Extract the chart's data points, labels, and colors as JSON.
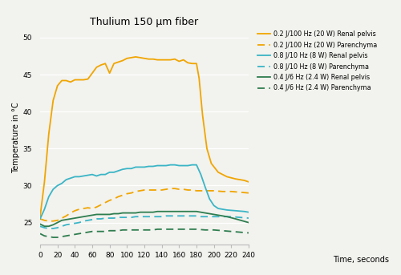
{
  "title": "Thulium 150 μm fiber",
  "ylabel": "Temperature in °C",
  "xlabel": "Time, seconds",
  "xlim": [
    0,
    240
  ],
  "ylim": [
    22,
    51
  ],
  "yticks": [
    25,
    30,
    35,
    40,
    45,
    50
  ],
  "xticks": [
    0,
    20,
    40,
    60,
    80,
    100,
    120,
    140,
    160,
    180,
    200,
    220,
    240
  ],
  "background_color": "#f2f2ee",
  "colors": {
    "orange": "#f0a500",
    "blue": "#3ab5c6",
    "green": "#2e7d4f"
  },
  "series": {
    "orange_solid": {
      "label": "0.2 J/100 Hz (20 W) Renal pelvis",
      "color": "#f0a500",
      "linestyle": "solid",
      "x": [
        0,
        5,
        10,
        15,
        20,
        25,
        30,
        35,
        40,
        45,
        50,
        55,
        60,
        65,
        70,
        75,
        80,
        85,
        90,
        95,
        100,
        105,
        110,
        115,
        120,
        125,
        130,
        135,
        140,
        145,
        150,
        155,
        160,
        165,
        170,
        175,
        180,
        183,
        187,
        192,
        197,
        205,
        215,
        225,
        235,
        240
      ],
      "y": [
        25.8,
        30.5,
        37.0,
        41.5,
        43.5,
        44.2,
        44.2,
        44.0,
        44.3,
        44.3,
        44.3,
        44.4,
        45.2,
        46.0,
        46.3,
        46.5,
        45.2,
        46.5,
        46.7,
        46.9,
        47.2,
        47.3,
        47.4,
        47.3,
        47.2,
        47.1,
        47.1,
        47.0,
        47.0,
        47.0,
        47.0,
        47.1,
        46.8,
        47.0,
        46.6,
        46.5,
        46.5,
        44.5,
        39.5,
        35.0,
        33.0,
        31.8,
        31.2,
        30.9,
        30.7,
        30.5
      ]
    },
    "orange_dashed": {
      "label": "0.2 J/100 Hz (20 W) Parenchyma",
      "color": "#f0a500",
      "linestyle": "dashed",
      "x": [
        0,
        5,
        10,
        15,
        20,
        25,
        30,
        35,
        40,
        45,
        50,
        55,
        60,
        65,
        70,
        75,
        80,
        85,
        90,
        95,
        100,
        105,
        110,
        115,
        120,
        125,
        130,
        135,
        140,
        145,
        150,
        155,
        160,
        165,
        170,
        175,
        180,
        185,
        190,
        200,
        210,
        220,
        230,
        240
      ],
      "y": [
        25.5,
        25.3,
        25.2,
        25.2,
        25.3,
        25.6,
        25.9,
        26.3,
        26.6,
        26.8,
        26.9,
        27.0,
        26.9,
        27.1,
        27.4,
        27.7,
        28.0,
        28.2,
        28.5,
        28.7,
        28.9,
        29.0,
        29.2,
        29.3,
        29.4,
        29.4,
        29.4,
        29.4,
        29.4,
        29.5,
        29.6,
        29.6,
        29.5,
        29.5,
        29.4,
        29.4,
        29.3,
        29.3,
        29.3,
        29.3,
        29.2,
        29.2,
        29.1,
        29.0
      ]
    },
    "blue_solid": {
      "label": "0.8 J/10 Hz (8 W) Renal pelvis",
      "color": "#3ab5c6",
      "linestyle": "solid",
      "x": [
        0,
        5,
        10,
        15,
        20,
        25,
        30,
        35,
        40,
        45,
        50,
        55,
        60,
        65,
        70,
        75,
        80,
        85,
        90,
        95,
        100,
        105,
        110,
        115,
        120,
        125,
        130,
        135,
        140,
        145,
        150,
        155,
        160,
        165,
        170,
        175,
        180,
        185,
        190,
        195,
        200,
        205,
        215,
        225,
        235,
        240
      ],
      "y": [
        25.5,
        26.8,
        28.5,
        29.5,
        30.0,
        30.3,
        30.8,
        31.0,
        31.2,
        31.2,
        31.3,
        31.4,
        31.5,
        31.3,
        31.5,
        31.5,
        31.8,
        31.8,
        32.0,
        32.2,
        32.3,
        32.3,
        32.5,
        32.5,
        32.5,
        32.6,
        32.6,
        32.7,
        32.7,
        32.7,
        32.8,
        32.8,
        32.7,
        32.7,
        32.7,
        32.8,
        32.8,
        31.5,
        29.8,
        28.2,
        27.3,
        26.9,
        26.7,
        26.6,
        26.5,
        26.4
      ]
    },
    "blue_dashed": {
      "label": "0.8 J/10 Hz (8 W) Parenchyma",
      "color": "#3ab5c6",
      "linestyle": "dashed",
      "x": [
        0,
        5,
        10,
        15,
        20,
        25,
        30,
        35,
        40,
        45,
        50,
        55,
        60,
        65,
        70,
        75,
        80,
        85,
        90,
        95,
        100,
        105,
        110,
        115,
        120,
        125,
        130,
        135,
        140,
        145,
        150,
        155,
        160,
        165,
        170,
        175,
        180,
        185,
        190,
        200,
        210,
        220,
        230,
        240
      ],
      "y": [
        24.5,
        24.3,
        24.2,
        24.2,
        24.3,
        24.5,
        24.7,
        24.8,
        24.9,
        25.0,
        25.2,
        25.3,
        25.4,
        25.5,
        25.5,
        25.6,
        25.6,
        25.6,
        25.7,
        25.7,
        25.7,
        25.7,
        25.8,
        25.8,
        25.8,
        25.8,
        25.8,
        25.8,
        25.8,
        25.9,
        25.9,
        25.9,
        25.9,
        25.9,
        25.9,
        25.9,
        25.9,
        25.8,
        25.8,
        25.8,
        25.8,
        25.8,
        25.7,
        25.6
      ]
    },
    "green_solid": {
      "label": "0.4 J/6 Hz (2.4 W) Renal pelvis",
      "color": "#2e7d4f",
      "linestyle": "solid",
      "x": [
        0,
        5,
        10,
        15,
        20,
        25,
        30,
        35,
        40,
        45,
        50,
        55,
        60,
        65,
        70,
        75,
        80,
        85,
        90,
        95,
        100,
        105,
        110,
        115,
        120,
        125,
        130,
        135,
        140,
        145,
        150,
        155,
        160,
        165,
        170,
        175,
        180,
        185,
        195,
        205,
        215,
        225,
        240
      ],
      "y": [
        24.8,
        24.5,
        24.5,
        24.7,
        25.0,
        25.3,
        25.4,
        25.5,
        25.6,
        25.7,
        25.8,
        25.9,
        26.0,
        26.1,
        26.1,
        26.1,
        26.1,
        26.2,
        26.2,
        26.3,
        26.3,
        26.3,
        26.3,
        26.4,
        26.4,
        26.4,
        26.4,
        26.5,
        26.5,
        26.5,
        26.5,
        26.5,
        26.5,
        26.5,
        26.5,
        26.5,
        26.5,
        26.4,
        26.2,
        26.0,
        25.8,
        25.5,
        25.0
      ]
    },
    "green_dashed": {
      "label": "0.4 J/6 Hz (2.4 W) Parenchyma",
      "color": "#2e7d4f",
      "linestyle": "dashed",
      "x": [
        0,
        5,
        10,
        15,
        20,
        25,
        30,
        35,
        40,
        45,
        50,
        55,
        60,
        65,
        70,
        75,
        80,
        85,
        90,
        95,
        100,
        105,
        110,
        115,
        120,
        125,
        130,
        135,
        140,
        145,
        150,
        155,
        160,
        165,
        170,
        175,
        180,
        190,
        200,
        210,
        220,
        230,
        240
      ],
      "y": [
        23.5,
        23.2,
        23.1,
        23.0,
        23.0,
        23.1,
        23.2,
        23.3,
        23.4,
        23.5,
        23.6,
        23.7,
        23.8,
        23.8,
        23.8,
        23.8,
        23.9,
        23.9,
        23.9,
        24.0,
        24.0,
        24.0,
        24.0,
        24.0,
        24.0,
        24.0,
        24.0,
        24.1,
        24.1,
        24.1,
        24.1,
        24.1,
        24.1,
        24.1,
        24.1,
        24.1,
        24.1,
        24.0,
        24.0,
        23.9,
        23.8,
        23.7,
        23.6
      ]
    }
  }
}
